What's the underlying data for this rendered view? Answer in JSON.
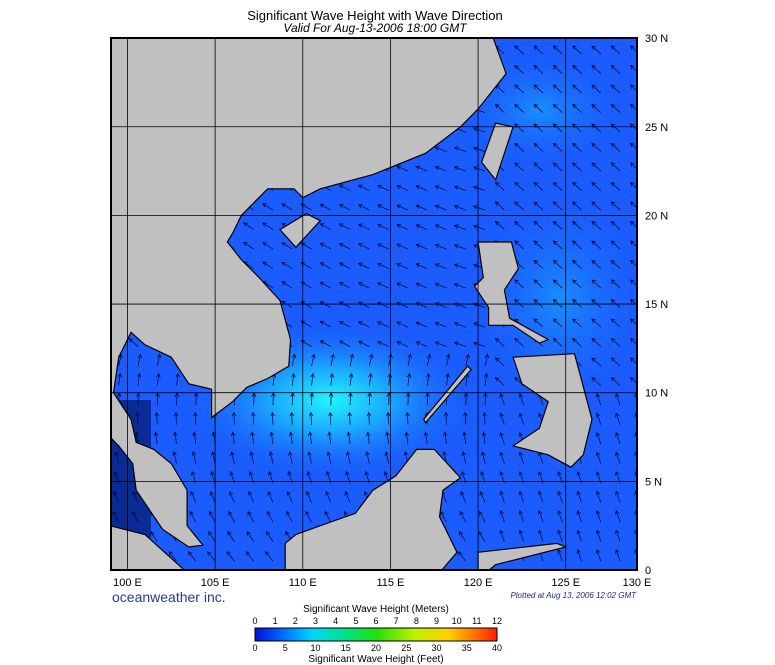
{
  "header": {
    "title": "Significant Wave Height with Wave Direction",
    "subtitle": "Valid For Aug-13-2006 18:00 GMT"
  },
  "map": {
    "lat_labels": [
      "0",
      "5 N",
      "10 N",
      "15 N",
      "20 N",
      "25 N",
      "30 N"
    ],
    "lon_labels": [
      "100 E",
      "105 E",
      "110 E",
      "115 E",
      "120 E",
      "125 E",
      "130 E"
    ]
  },
  "footer": {
    "brand": "oceanweather inc.",
    "plotted": "Plotted at Aug 13, 2006 12:02 GMT"
  },
  "colorbar": {
    "title_top": "Significant Wave Height (Meters)",
    "meter_ticks": [
      0,
      1,
      2,
      3,
      4,
      5,
      6,
      7,
      8,
      9,
      10,
      11,
      12
    ],
    "feet_ticks": [
      0,
      5,
      10,
      15,
      20,
      25,
      30,
      35,
      40
    ],
    "title_bottom": "Significant Wave Height (Feet)"
  }
}
